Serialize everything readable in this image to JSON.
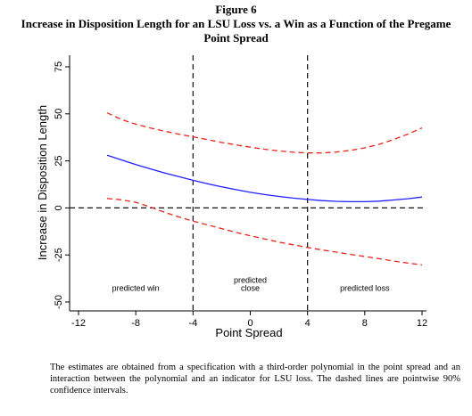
{
  "figure": {
    "label": "Figure 6",
    "title_line1": "Increase in Disposition Length for an LSU Loss vs. a Win as a Function of the Pregame",
    "title_line2": "Point Spread",
    "caption": "The estimates are obtained from a specification with a third-order polynomial in the point spread and an interaction between the polynomial and an indicator for LSU loss. The dashed lines are pointwise 90% confidence intervals."
  },
  "chart_data": {
    "type": "line",
    "title": "",
    "xlabel": "Point Spread",
    "ylabel": "Increase in Disposition Length",
    "xlim": [
      -12,
      12
    ],
    "ylim": [
      -50,
      75
    ],
    "x_ticks": [
      -12,
      -8,
      -4,
      0,
      4,
      8,
      12
    ],
    "y_ticks": [
      -50,
      -25,
      0,
      25,
      50,
      75
    ],
    "x": [
      -10,
      -9,
      -8,
      -7,
      -6,
      -5,
      -4,
      -3,
      -2,
      -1,
      0,
      1,
      2,
      3,
      4,
      5,
      6,
      7,
      8,
      9,
      10,
      11,
      12
    ],
    "series": [
      {
        "role": "estimate",
        "style": "solid",
        "color": "#1f1fff",
        "values": [
          28,
          25.5,
          23,
          20.8,
          18.6,
          16.6,
          14.7,
          12.9,
          11.2,
          9.7,
          8.3,
          7.1,
          6.1,
          5.2,
          4.5,
          3.9,
          3.5,
          3.3,
          3.3,
          3.6,
          4.2,
          4.9,
          5.8
        ]
      },
      {
        "role": "upper-ci",
        "style": "dashed",
        "color": "#e8251c",
        "values": [
          50.5,
          47,
          44.5,
          42.5,
          40.8,
          39.2,
          37.8,
          36.3,
          34.8,
          33.5,
          32.3,
          31.2,
          30.3,
          29.6,
          29.2,
          29.2,
          29.7,
          30.6,
          31.9,
          33.8,
          36.3,
          39.2,
          42.5
        ]
      },
      {
        "role": "lower-ci",
        "style": "dashed",
        "color": "#e8251c",
        "values": [
          5,
          4.3,
          3,
          0.5,
          -2.3,
          -4.8,
          -7,
          -9,
          -11,
          -13,
          -14.8,
          -16.5,
          -18.2,
          -19.6,
          -21,
          -22.3,
          -23.5,
          -24.7,
          -25.8,
          -27,
          -28.2,
          -29.3,
          -30.3
        ]
      }
    ],
    "reference_lines": {
      "vertical_x": [
        -4,
        4
      ],
      "horizontal_y": [
        0
      ]
    },
    "region_labels": [
      {
        "text": "predicted win",
        "x": -8,
        "y": -44
      },
      {
        "line1": "predicted",
        "line2": "close",
        "x": 0,
        "y": -44
      },
      {
        "text": "predicted loss",
        "x": 8,
        "y": -44
      }
    ],
    "colors": {
      "estimate": "#1f1fff",
      "ci": "#e8251c",
      "reference": "#111111"
    }
  }
}
